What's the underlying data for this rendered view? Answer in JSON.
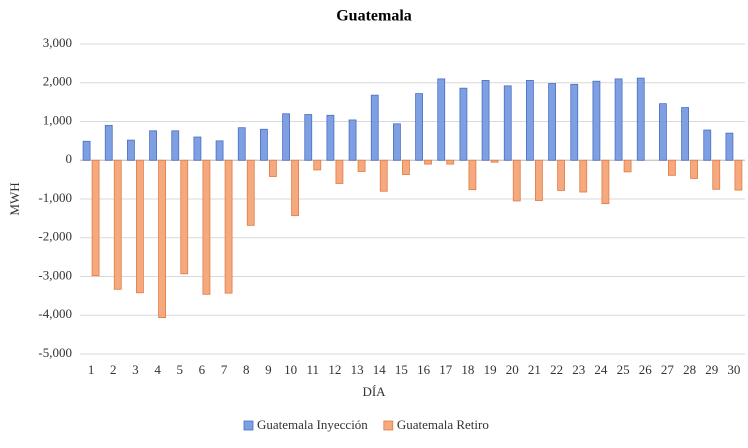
{
  "chart_data": {
    "type": "bar",
    "title": "Guatemala",
    "x_label": "DÍA",
    "y_label": "MWH",
    "categories": [
      "1",
      "2",
      "3",
      "4",
      "5",
      "6",
      "7",
      "8",
      "9",
      "10",
      "11",
      "12",
      "13",
      "14",
      "15",
      "16",
      "17",
      "18",
      "19",
      "20",
      "21",
      "22",
      "23",
      "24",
      "25",
      "26",
      "27",
      "28",
      "29",
      "30"
    ],
    "series": [
      {
        "name": "Guatemala Inyección",
        "color": "#7f9fe3",
        "stroke": "#4a6fc0",
        "values": [
          490,
          900,
          520,
          760,
          760,
          600,
          500,
          840,
          800,
          1200,
          1180,
          1160,
          1040,
          1680,
          940,
          1720,
          2100,
          1860,
          2060,
          1920,
          2060,
          1980,
          1960,
          2040,
          2100,
          2120,
          1460,
          1360,
          780,
          700
        ]
      },
      {
        "name": "Guatemala Retiro",
        "color": "#f6a87e",
        "stroke": "#e07c45",
        "values": [
          -2980,
          -3330,
          -3420,
          -4060,
          -2930,
          -3460,
          -3430,
          -1680,
          -420,
          -1430,
          -250,
          -600,
          -290,
          -800,
          -370,
          -100,
          -100,
          -760,
          -50,
          -1050,
          -1040,
          -780,
          -820,
          -1120,
          -300,
          0,
          -390,
          -470,
          -750,
          -770
        ]
      }
    ],
    "ylim": [
      -5000,
      3000
    ],
    "yticks": [
      {
        "value": -5000,
        "label": "-5,000"
      },
      {
        "value": -4000,
        "label": "-4,000"
      },
      {
        "value": -3000,
        "label": "-3,000"
      },
      {
        "value": -2000,
        "label": "-2,000"
      },
      {
        "value": -1000,
        "label": "-1,000"
      },
      0,
      {
        "value": 1000,
        "label": "1,000"
      },
      {
        "value": 2000,
        "label": "2,000"
      },
      {
        "value": 3000,
        "label": "3,000"
      }
    ],
    "grid": true,
    "legend": "bottom"
  }
}
